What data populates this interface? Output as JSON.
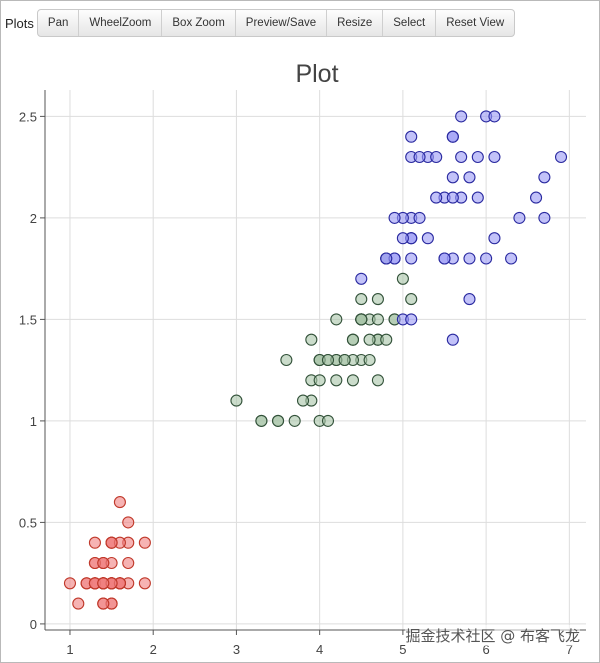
{
  "toolbar": {
    "title": "Plots",
    "buttons": [
      "Pan",
      "WheelZoom",
      "Box Zoom",
      "Preview/Save",
      "Resize",
      "Select",
      "Reset View"
    ]
  },
  "watermark": "掘金技术社区 @ 布客飞龙",
  "colors": {
    "red_fill": "#f08080",
    "red_stroke": "#c0392b",
    "green_fill": "#a9c4a9",
    "green_stroke": "#33523a",
    "blue_fill": "#9a9af5",
    "blue_stroke": "#2a2aa0",
    "grid": "#dddddd",
    "axis": "#555555"
  },
  "chart_data": {
    "type": "scatter",
    "title": "Plot",
    "xlabel": "",
    "ylabel": "",
    "xlim": [
      0.7,
      7.2
    ],
    "ylim": [
      -0.03,
      2.63
    ],
    "x_ticks": [
      1,
      2,
      3,
      4,
      5,
      6,
      7
    ],
    "y_ticks": [
      0,
      0.5,
      1,
      1.5,
      2,
      2.5
    ],
    "y_tick_labels": [
      "0",
      "0.5",
      "1",
      "1.5",
      "2",
      "2.5"
    ],
    "grid": true,
    "series": [
      {
        "color": "red",
        "points": [
          [
            1.4,
            0.2
          ],
          [
            1.4,
            0.2
          ],
          [
            1.3,
            0.2
          ],
          [
            1.5,
            0.2
          ],
          [
            1.4,
            0.2
          ],
          [
            1.7,
            0.4
          ],
          [
            1.4,
            0.3
          ],
          [
            1.5,
            0.2
          ],
          [
            1.4,
            0.2
          ],
          [
            1.5,
            0.1
          ],
          [
            1.5,
            0.2
          ],
          [
            1.6,
            0.2
          ],
          [
            1.4,
            0.1
          ],
          [
            1.1,
            0.1
          ],
          [
            1.2,
            0.2
          ],
          [
            1.5,
            0.4
          ],
          [
            1.3,
            0.4
          ],
          [
            1.4,
            0.3
          ],
          [
            1.7,
            0.3
          ],
          [
            1.5,
            0.3
          ],
          [
            1.7,
            0.2
          ],
          [
            1.5,
            0.4
          ],
          [
            1.0,
            0.2
          ],
          [
            1.7,
            0.5
          ],
          [
            1.9,
            0.2
          ],
          [
            1.6,
            0.2
          ],
          [
            1.6,
            0.4
          ],
          [
            1.5,
            0.2
          ],
          [
            1.4,
            0.2
          ],
          [
            1.6,
            0.2
          ],
          [
            1.6,
            0.2
          ],
          [
            1.5,
            0.4
          ],
          [
            1.5,
            0.1
          ],
          [
            1.4,
            0.2
          ],
          [
            1.5,
            0.2
          ],
          [
            1.2,
            0.2
          ],
          [
            1.3,
            0.2
          ],
          [
            1.4,
            0.1
          ],
          [
            1.3,
            0.2
          ],
          [
            1.5,
            0.2
          ],
          [
            1.3,
            0.3
          ],
          [
            1.3,
            0.3
          ],
          [
            1.3,
            0.2
          ],
          [
            1.6,
            0.6
          ],
          [
            1.9,
            0.4
          ],
          [
            1.4,
            0.3
          ],
          [
            1.6,
            0.2
          ],
          [
            1.4,
            0.2
          ],
          [
            1.5,
            0.2
          ],
          [
            1.4,
            0.2
          ]
        ]
      },
      {
        "color": "green",
        "points": [
          [
            4.7,
            1.4
          ],
          [
            4.5,
            1.5
          ],
          [
            4.9,
            1.5
          ],
          [
            4.0,
            1.3
          ],
          [
            4.6,
            1.5
          ],
          [
            4.5,
            1.3
          ],
          [
            4.7,
            1.6
          ],
          [
            3.3,
            1.0
          ],
          [
            4.6,
            1.3
          ],
          [
            3.9,
            1.4
          ],
          [
            3.5,
            1.0
          ],
          [
            4.2,
            1.5
          ],
          [
            4.0,
            1.0
          ],
          [
            4.7,
            1.4
          ],
          [
            3.6,
            1.3
          ],
          [
            4.4,
            1.4
          ],
          [
            4.5,
            1.5
          ],
          [
            4.1,
            1.0
          ],
          [
            4.5,
            1.5
          ],
          [
            3.9,
            1.1
          ],
          [
            4.8,
            1.8
          ],
          [
            4.0,
            1.3
          ],
          [
            4.9,
            1.5
          ],
          [
            4.7,
            1.2
          ],
          [
            4.3,
            1.3
          ],
          [
            4.4,
            1.4
          ],
          [
            4.8,
            1.4
          ],
          [
            5.0,
            1.7
          ],
          [
            4.5,
            1.5
          ],
          [
            3.5,
            1.0
          ],
          [
            3.8,
            1.1
          ],
          [
            3.7,
            1.0
          ],
          [
            3.9,
            1.2
          ],
          [
            5.1,
            1.6
          ],
          [
            4.5,
            1.5
          ],
          [
            4.5,
            1.6
          ],
          [
            4.7,
            1.5
          ],
          [
            4.4,
            1.3
          ],
          [
            4.1,
            1.3
          ],
          [
            4.0,
            1.3
          ],
          [
            4.4,
            1.2
          ],
          [
            4.6,
            1.4
          ],
          [
            4.0,
            1.2
          ],
          [
            3.3,
            1.0
          ],
          [
            4.2,
            1.3
          ],
          [
            4.2,
            1.2
          ],
          [
            4.2,
            1.3
          ],
          [
            4.3,
            1.3
          ],
          [
            3.0,
            1.1
          ],
          [
            4.1,
            1.3
          ]
        ]
      },
      {
        "color": "blue",
        "points": [
          [
            6.0,
            2.5
          ],
          [
            5.1,
            1.9
          ],
          [
            5.9,
            2.1
          ],
          [
            5.6,
            1.8
          ],
          [
            5.8,
            2.2
          ],
          [
            6.6,
            2.1
          ],
          [
            4.5,
            1.7
          ],
          [
            6.3,
            1.8
          ],
          [
            5.8,
            1.8
          ],
          [
            6.1,
            2.5
          ],
          [
            5.1,
            2.0
          ],
          [
            5.3,
            1.9
          ],
          [
            5.5,
            2.1
          ],
          [
            5.0,
            2.0
          ],
          [
            5.1,
            2.4
          ],
          [
            5.3,
            2.3
          ],
          [
            5.5,
            1.8
          ],
          [
            6.7,
            2.2
          ],
          [
            6.9,
            2.3
          ],
          [
            5.0,
            1.5
          ],
          [
            5.7,
            2.3
          ],
          [
            4.9,
            2.0
          ],
          [
            6.7,
            2.0
          ],
          [
            4.9,
            1.8
          ],
          [
            5.7,
            2.1
          ],
          [
            6.0,
            1.8
          ],
          [
            4.8,
            1.8
          ],
          [
            4.9,
            1.8
          ],
          [
            5.6,
            2.1
          ],
          [
            5.8,
            1.6
          ],
          [
            6.1,
            1.9
          ],
          [
            6.4,
            2.0
          ],
          [
            5.6,
            2.2
          ],
          [
            5.1,
            1.5
          ],
          [
            5.6,
            1.4
          ],
          [
            6.1,
            2.3
          ],
          [
            5.6,
            2.4
          ],
          [
            5.5,
            1.8
          ],
          [
            4.8,
            1.8
          ],
          [
            5.4,
            2.1
          ],
          [
            5.6,
            2.4
          ],
          [
            5.1,
            2.3
          ],
          [
            5.1,
            1.9
          ],
          [
            5.9,
            2.3
          ],
          [
            5.7,
            2.5
          ],
          [
            5.2,
            2.3
          ],
          [
            5.0,
            1.9
          ],
          [
            5.2,
            2.0
          ],
          [
            5.4,
            2.3
          ],
          [
            5.1,
            1.8
          ]
        ]
      }
    ]
  }
}
